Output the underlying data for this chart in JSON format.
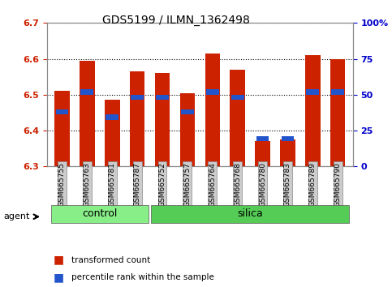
{
  "title": "GDS5199 / ILMN_1362498",
  "samples": [
    "GSM665755",
    "GSM665763",
    "GSM665781",
    "GSM665787",
    "GSM665752",
    "GSM665757",
    "GSM665764",
    "GSM665768",
    "GSM665780",
    "GSM665783",
    "GSM665789",
    "GSM665790"
  ],
  "groups": [
    "control",
    "control",
    "control",
    "control",
    "silica",
    "silica",
    "silica",
    "silica",
    "silica",
    "silica",
    "silica",
    "silica"
  ],
  "red_values": [
    6.51,
    6.595,
    6.485,
    6.565,
    6.56,
    6.505,
    6.615,
    6.57,
    6.37,
    6.375,
    6.61,
    6.6
  ],
  "blue_values": [
    6.445,
    6.5,
    6.43,
    6.485,
    6.485,
    6.445,
    6.5,
    6.485,
    6.37,
    6.37,
    6.5,
    6.5
  ],
  "y_min": 6.3,
  "y_max": 6.7,
  "y_ticks": [
    6.3,
    6.4,
    6.5,
    6.6,
    6.7
  ],
  "y2_tick_vals": [
    0,
    25,
    50,
    75,
    100
  ],
  "y2_tick_labels": [
    "0",
    "25",
    "50",
    "75",
    "100%"
  ],
  "left_color": "#cc2200",
  "right_color": "#0000cc",
  "bar_red_color": "#cc2200",
  "bar_blue_color": "#2255cc",
  "control_group_color": "#88ee88",
  "silica_group_color": "#55cc55",
  "bar_width": 0.6
}
